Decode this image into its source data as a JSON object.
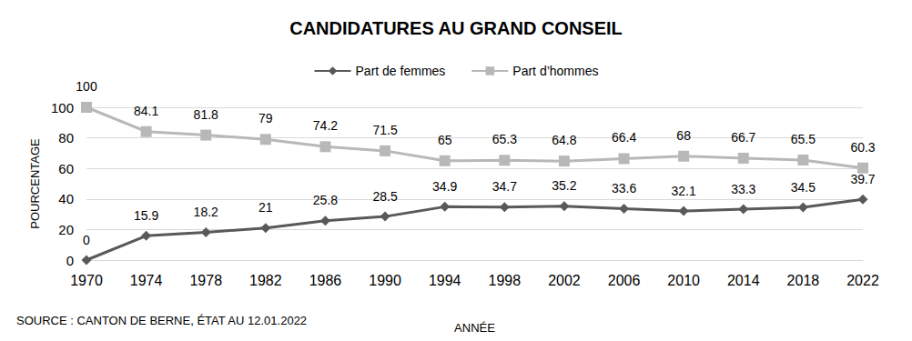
{
  "chart_data": {
    "type": "line",
    "title": "CANDIDATURES AU GRAND CONSEIL",
    "x_label": "ANNÉE",
    "y_label": "POURCENTAGE",
    "source": "SOURCE : CANTON DE BERNE, ÉTAT AU 12.01.2022",
    "categories": [
      "1970",
      "1974",
      "1978",
      "1982",
      "1986",
      "1990",
      "1994",
      "1998",
      "2002",
      "2006",
      "2010",
      "2014",
      "2018",
      "2022"
    ],
    "series": [
      {
        "name": "Part de femmes",
        "color": "#595959",
        "marker": "diamond",
        "values": [
          0,
          15.9,
          18.2,
          21,
          25.8,
          28.5,
          34.9,
          34.7,
          35.2,
          33.6,
          32.1,
          33.3,
          34.5,
          39.7
        ]
      },
      {
        "name": "Part d’hommes",
        "color": "#b8b8b8",
        "marker": "square",
        "values": [
          100,
          84.1,
          81.8,
          79,
          74.2,
          71.5,
          65,
          65.3,
          64.8,
          66.4,
          68,
          66.7,
          65.5,
          60.3
        ]
      }
    ],
    "ylim": [
      0,
      100
    ],
    "yticks": [
      0,
      20,
      40,
      60,
      80,
      100
    ],
    "grid": true,
    "legend": "top",
    "data_labels": true
  }
}
